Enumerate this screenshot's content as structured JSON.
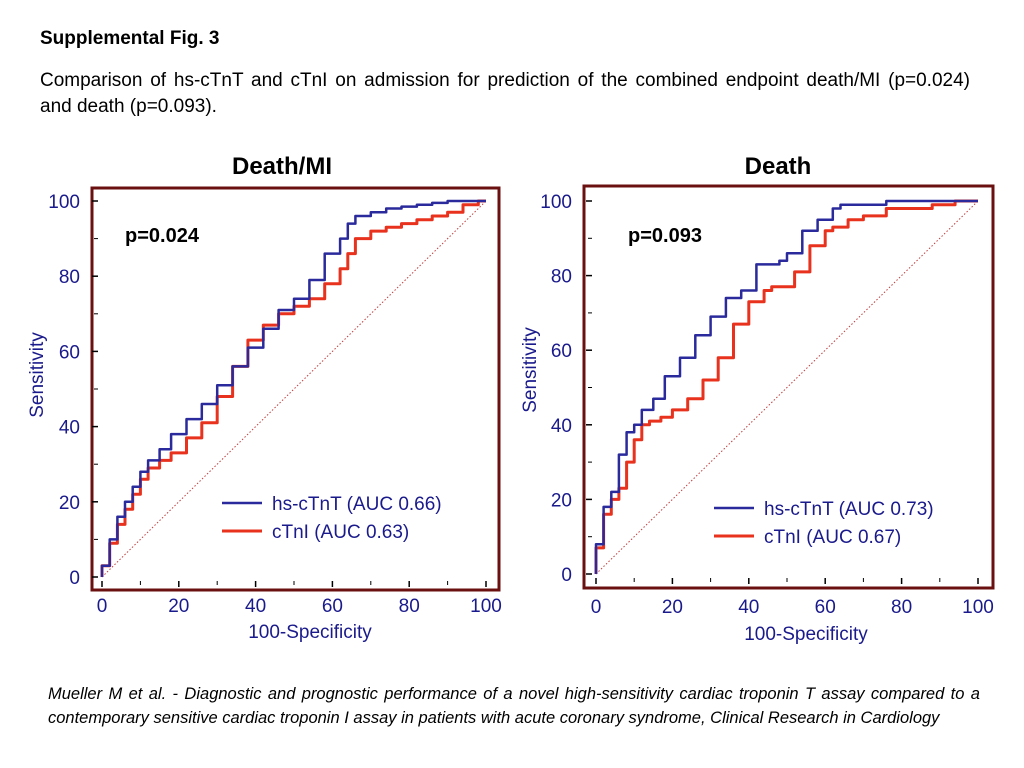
{
  "figure": {
    "label": "Supplemental Fig. 3",
    "caption": "Comparison of hs-cTnT and cTnI on admission for prediction of the combined endpoint death/MI (p=0.024) and death (p=0.093).",
    "citation": "Mueller M et al. - Diagnostic and prognostic performance of a novel high-sensitivity cardiac troponin T assay compared to a contemporary sensitive cardiac troponin I assay in patients with acute coronary syndrome, Clinical Research in Cardiology"
  },
  "colors": {
    "frame": "#6b1010",
    "axis_text": "#1a1a8c",
    "series_hs": "#2a2a9c",
    "series_ctni": "#e8321e",
    "diagonal": "#c04040"
  },
  "chart_data": [
    {
      "type": "line",
      "title": "Death/MI",
      "annotation": "p=0.024",
      "xlabel": "100-Specificity",
      "ylabel": "Sensitivity",
      "xlim": [
        0,
        100
      ],
      "ylim": [
        0,
        100
      ],
      "xticks": [
        "0",
        "20",
        "40",
        "60",
        "80",
        "100"
      ],
      "yticks": [
        "0",
        "20",
        "40",
        "60",
        "80",
        "100"
      ],
      "grid": false,
      "legend_position": "bottom-right",
      "reference_line": "diagonal",
      "series": [
        {
          "name": "hs-cTnT (AUC 0.66)",
          "x": [
            0,
            2,
            4,
            6,
            8,
            10,
            12,
            15,
            18,
            22,
            26,
            30,
            34,
            38,
            42,
            46,
            50,
            54,
            58,
            62,
            64,
            66,
            70,
            74,
            78,
            82,
            86,
            90,
            94,
            98,
            100
          ],
          "y": [
            0,
            3,
            10,
            16,
            20,
            24,
            28,
            31,
            34,
            38,
            42,
            46,
            51,
            56,
            61,
            66,
            71,
            74,
            79,
            86,
            90,
            94,
            96,
            97,
            98,
            98.5,
            99,
            99.5,
            100,
            100,
            100
          ]
        },
        {
          "name": "cTnI (AUC 0.63)",
          "x": [
            0,
            2,
            4,
            6,
            8,
            10,
            12,
            15,
            18,
            22,
            26,
            30,
            34,
            38,
            42,
            46,
            50,
            54,
            58,
            62,
            64,
            66,
            70,
            74,
            78,
            82,
            86,
            90,
            94,
            98,
            100
          ],
          "y": [
            0,
            3,
            9,
            14,
            18,
            22,
            26,
            29,
            31,
            33,
            37,
            41,
            48,
            56,
            63,
            67,
            70,
            72,
            74,
            78,
            82,
            86,
            90,
            92,
            93,
            94,
            95,
            96,
            97,
            99,
            100
          ]
        }
      ]
    },
    {
      "type": "line",
      "title": "Death",
      "annotation": "p=0.093",
      "xlabel": "100-Specificity",
      "ylabel": "Sensitivity",
      "xlim": [
        0,
        100
      ],
      "ylim": [
        0,
        100
      ],
      "xticks": [
        "0",
        "20",
        "40",
        "60",
        "80",
        "100"
      ],
      "yticks": [
        "0",
        "20",
        "40",
        "60",
        "80",
        "100"
      ],
      "grid": false,
      "legend_position": "bottom-right",
      "reference_line": "diagonal",
      "series": [
        {
          "name": "hs-cTnT (AUC 0.73)",
          "x": [
            0,
            2,
            4,
            6,
            8,
            10,
            12,
            15,
            18,
            22,
            26,
            30,
            34,
            38,
            42,
            46,
            48,
            50,
            54,
            58,
            60,
            62,
            64,
            66,
            70,
            76,
            82,
            90,
            96,
            100
          ],
          "y": [
            0,
            8,
            18,
            22,
            32,
            38,
            40,
            44,
            47,
            53,
            58,
            64,
            69,
            74,
            76,
            83,
            83,
            84,
            86,
            92,
            95,
            95,
            98,
            99,
            99,
            99,
            100,
            100,
            100,
            100
          ]
        },
        {
          "name": "cTnI (AUC 0.67)",
          "x": [
            0,
            2,
            4,
            6,
            8,
            10,
            12,
            14,
            17,
            20,
            24,
            28,
            32,
            36,
            40,
            44,
            46,
            48,
            52,
            56,
            60,
            62,
            64,
            66,
            70,
            76,
            82,
            88,
            94,
            100
          ],
          "y": [
            0,
            7,
            16,
            20,
            23,
            30,
            36,
            40,
            41,
            42,
            44,
            47,
            52,
            58,
            67,
            73,
            76,
            77,
            77,
            81,
            88,
            92,
            93,
            93,
            95,
            96,
            98,
            98,
            99,
            100
          ]
        }
      ]
    }
  ]
}
